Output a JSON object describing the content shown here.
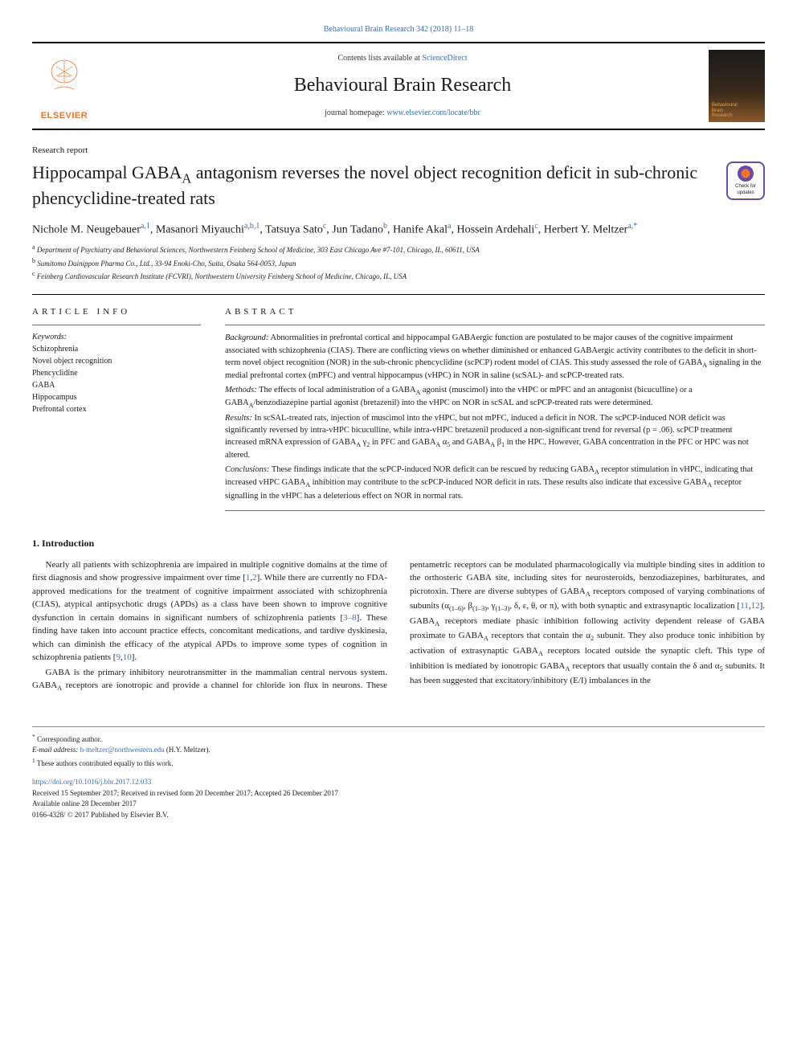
{
  "journal_link_top": "Behavioural Brain Research 342 (2018) 11–18",
  "header": {
    "contents_prefix": "Contents lists available at ",
    "contents_link": "ScienceDirect",
    "journal_name": "Behavioural Brain Research",
    "homepage_prefix": "journal homepage: ",
    "homepage_link": "www.elsevier.com/locate/bbr",
    "elsevier_label": "ELSEVIER",
    "cover_line1": "Behavioural",
    "cover_line2": "Brain",
    "cover_line3": "Research"
  },
  "article_type": "Research report",
  "title_html": "Hippocampal GABA<sub>A</sub> antagonism reverses the novel object recognition deficit in sub-chronic phencyclidine-treated rats",
  "updates_badge": "Check for updates",
  "authors_html": "Nichole M. Neugebauer<sup>a,1</sup>, Masanori Miyauchi<sup>a,b,1</sup>, Tatsuya Sato<sup>c</sup>, Jun Tadano<sup>b</sup>, Hanife Akal<sup>a</sup>, Hossein Ardehali<sup>c</sup>, Herbert Y. Meltzer<sup>a,*</sup>",
  "affiliations": {
    "a": "Department of Psychiatry and Behavioral Sciences, Northwestern Feinberg School of Medicine, 303 East Chicago Ave #7-101, Chicago, IL, 60611, USA",
    "b": "Sumitomo Dainippon Pharma Co., Ltd., 33-94 Enoki-Cho, Suita, Osaka 564-0053, Japan",
    "c": "Feinberg Cardiovascular Research Institute (FCVRI), Northwestern University Feinberg School of Medicine, Chicago, IL, USA"
  },
  "article_info_head": "ARTICLE INFO",
  "abstract_head": "ABSTRACT",
  "keywords_label": "Keywords:",
  "keywords": [
    "Schizophrenia",
    "Novel object recognition",
    "Phencyclidine",
    "GABA",
    "Hippocampus",
    "Prefrontal cortex"
  ],
  "abstract": {
    "background": "Abnormalities in prefrontal cortical and hippocampal GABAergic function are postulated to be major causes of the cognitive impairment associated with schizophrenia (CIAS). There are conflicting views on whether diminished or enhanced GABAergic activity contributes to the deficit in short-term novel object recognition (NOR) in the sub-chronic phencyclidine (scPCP) rodent model of CIAS. This study assessed the role of GABA<sub>A</sub> signaling in the medial prefrontal cortex (mPFC) and ventral hippocampus (vHPC) in NOR in saline (scSAL)- and scPCP-treated rats.",
    "methods": "The effects of local administration of a GABA<sub>A</sub> agonist (muscimol) into the vHPC or mPFC and an antagonist (bicuculline) or a GABA<sub>A</sub>/benzodiazepine partial agonist (bretazenil) into the vHPC on NOR in scSAL and scPCP-treated rats were determined.",
    "results": "In scSAL-treated rats, injection of muscimol into the vHPC, but not mPFC, induced a deficit in NOR. The scPCP-induced NOR deficit was significantly reversed by intra-vHPC bicuculline, while intra-vHPC bretazenil produced a non-significant trend for reversal (p = .06). scPCP treatment increased mRNA expression of GABA<sub>A</sub> γ<sub>2</sub> in PFC and GABA<sub>A</sub> α<sub>5</sub> and GABA<sub>A</sub> β<sub>1</sub> in the HPC. However, GABA concentration in the PFC or HPC was not altered.",
    "conclusions": "These findings indicate that the scPCP-induced NOR deficit can be rescued by reducing GABA<sub>A</sub> receptor stimulation in vHPC, indicating that increased vHPC GABA<sub>A</sub> inhibition may contribute to the scPCP-induced NOR deficit in rats. These results also indicate that excessive GABA<sub>A</sub> receptor signalling in the vHPC has a deleterious effect on NOR in normal rats."
  },
  "intro_head": "1. Introduction",
  "intro": {
    "p1": "Nearly all patients with schizophrenia are impaired in multiple cognitive domains at the time of first diagnosis and show progressive impairment over time [<a>1</a>,<a>2</a>]. While there are currently no FDA-approved medications for the treatment of cognitive impairment associated with schizophrenia (CIAS), atypical antipsychotic drugs (APDs) as a class have been shown to improve cognitive dysfunction in certain domains in significant numbers of schizophrenia patients [<a>3–8</a>]. These finding have taken into account practice effects, concomitant medications, and tardive dyskinesia, which can diminish the efficacy of the atypical APDs to improve some types of cognition in schizophrenia patients [<a>9</a>,<a>10</a>].",
    "p2": "GABA is the primary inhibitory neurotransmitter in the mammalian central nervous system. GABA<sub>A</sub> receptors are ionotropic and provide a channel for chloride ion flux in neurons. These pentametric receptors can be modulated pharmacologically via multiple binding sites in addition to the orthosteric GABA site, including sites for neurosteroids, benzodiazepines, barbiturates, and picrotoxin. There are diverse subtypes of GABA<sub>A</sub> receptors composed of varying combinations of subunits (α<sub>(1–6)</sub>, β<sub>(1–3)</sub>, γ<sub>(1–3)</sub>, δ, ε, θ, or π), with both synaptic and extrasynaptic localization [<a>11</a>,<a>12</a>]. GABA<sub>A</sub> receptors mediate phasic inhibition following activity dependent release of GABA proximate to GABA<sub>A</sub> receptors that contain the α<sub>2</sub> subunit. They also produce tonic inhibition by activation of extrasynaptic GABA<sub>A</sub> receptors located outside the synaptic cleft. This type of inhibition is mediated by ionotropic GABA<sub>A</sub> receptors that usually contain the δ and α<sub>5</sub> subunits. It has been suggested that excitatory/inhibitory (E/I) imbalances in the"
  },
  "footer": {
    "corresponding": "Corresponding author.",
    "email_label": "E-mail address:",
    "email": "h-meltzer@northwestern.edu",
    "email_paren": "(H.Y. Meltzer).",
    "equal": "These authors contributed equally to this work.",
    "doi": "https://doi.org/10.1016/j.bbr.2017.12.033",
    "received": "Received 15 September 2017; Received in revised form 20 December 2017; Accepted 26 December 2017",
    "available": "Available online 28 December 2017",
    "issn": "0166-4328/ © 2017 Published by Elsevier B.V."
  },
  "colors": {
    "link": "#3b6db5",
    "elsevier": "#e8762d",
    "badge_border": "#6b4ba8"
  }
}
